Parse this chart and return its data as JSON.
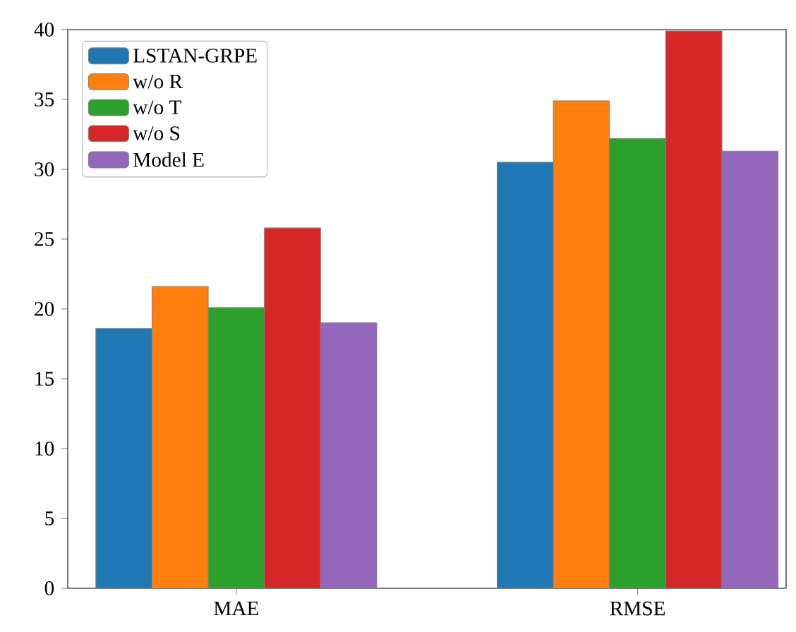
{
  "chart_data": {
    "type": "bar",
    "categories": [
      "MAE",
      "RMSE"
    ],
    "series": [
      {
        "name": "LSTAN-GRPE",
        "color": "#1f77b4",
        "values": [
          18.6,
          30.5
        ]
      },
      {
        "name": "w/o R",
        "color": "#ff7f0e",
        "values": [
          21.6,
          34.9
        ]
      },
      {
        "name": "w/o T",
        "color": "#2ca02c",
        "values": [
          20.1,
          32.2
        ]
      },
      {
        "name": "w/o S",
        "color": "#d62728",
        "values": [
          25.8,
          39.9
        ]
      },
      {
        "name": "Model E",
        "color": "#9467bd",
        "values": [
          19.0,
          31.3
        ]
      }
    ],
    "ylim": [
      0,
      40
    ],
    "yticks": [
      0,
      5,
      10,
      15,
      20,
      25,
      30,
      35,
      40
    ],
    "legend": "top left",
    "grid": false
  }
}
